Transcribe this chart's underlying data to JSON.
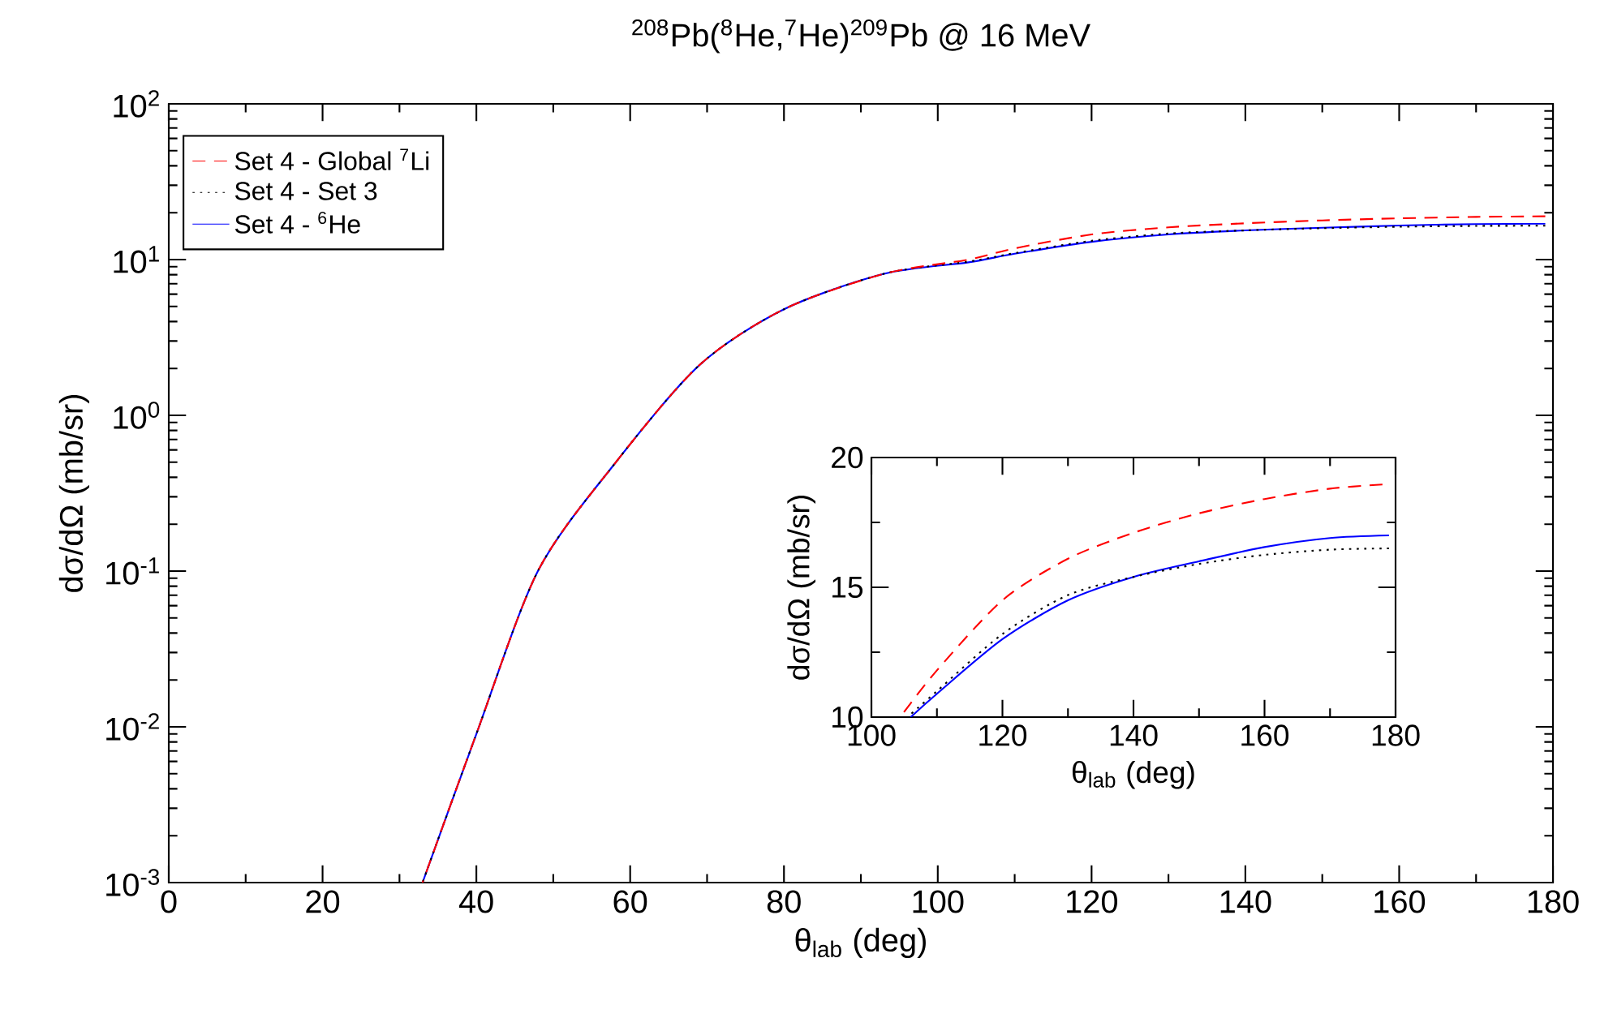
{
  "chart_data": [
    {
      "type": "line",
      "title": "$^{208}$Pb($^{8}$He,$^{7}$He)$^{209}$Pb @ 16 MeV",
      "xlabel": "θ$_{lab}$  (deg)",
      "ylabel": "dσ/dΩ  (mb/sr)",
      "log": "y",
      "legend": "top left",
      "xlim": [
        0,
        180
      ],
      "ylim": [
        0.001,
        100
      ],
      "xticks": [
        0,
        20,
        40,
        60,
        80,
        100,
        120,
        140,
        160,
        180
      ],
      "yticks": [
        {
          "value": 0.001,
          "label": "10$^{-3}$"
        },
        {
          "value": 0.01,
          "label": "10$^{-2}$"
        },
        {
          "value": 0.1,
          "label": "10$^{-1}$"
        },
        {
          "value": 1,
          "label": "10$^{0}$"
        },
        {
          "value": 10,
          "label": "10$^{1}$"
        },
        {
          "value": 100,
          "label": "10$^{2}$"
        }
      ],
      "x": [
        33,
        40,
        48,
        58,
        69,
        80,
        93,
        104,
        110,
        120,
        130,
        140,
        150,
        160,
        170,
        179
      ],
      "series": [
        {
          "name": "Set 4 - Global $^{7}$Li",
          "color": "#ff0000",
          "line_style": "dashed",
          "values": [
            0.001,
            0.009,
            0.1,
            0.49,
            2.1,
            4.8,
            8.1,
            10,
            11.8,
            14.5,
            16.1,
            17.1,
            17.85,
            18.4,
            18.8,
            18.96
          ]
        },
        {
          "name": "Set 4 - Set 3",
          "color": "#000000",
          "line_style": "dotted",
          "values": [
            0.001,
            0.009,
            0.1,
            0.49,
            2.1,
            4.8,
            8.1,
            9.7,
            11.0,
            13.2,
            14.7,
            15.4,
            15.9,
            16.25,
            16.45,
            16.5
          ]
        },
        {
          "name": "Set 4 - $^{6}$He",
          "color": "#0000ff",
          "line_style": "solid",
          "values": [
            0.001,
            0.009,
            0.1,
            0.49,
            2.1,
            4.8,
            8.1,
            9.6,
            10.9,
            13.0,
            14.5,
            15.4,
            16.0,
            16.55,
            16.9,
            17.0
          ]
        }
      ]
    },
    {
      "type": "line",
      "xlabel": "θ$_{lab}$  (deg)",
      "ylabel": "dσ/dΩ  (mb/sr)",
      "xlim": [
        100,
        180
      ],
      "ylim": [
        10,
        20
      ],
      "xticks": [
        100,
        120,
        140,
        160,
        180
      ],
      "yticks": [
        10,
        15,
        20
      ],
      "series": [
        {
          "color": "#ff0000",
          "line_style": "dashed",
          "x": [
            104.4,
            110,
            120,
            130,
            140,
            150,
            160,
            170,
            178
          ],
          "values": [
            10,
            11.8,
            14.5,
            16.1,
            17.1,
            17.85,
            18.4,
            18.8,
            18.96
          ]
        },
        {
          "color": "#000000",
          "line_style": "dotted",
          "x": [
            105.5,
            110,
            120,
            130,
            140,
            150,
            160,
            170,
            179
          ],
          "values": [
            10,
            11.0,
            13.2,
            14.7,
            15.4,
            15.9,
            16.25,
            16.45,
            16.5
          ]
        },
        {
          "color": "#0000ff",
          "line_style": "solid",
          "x": [
            106,
            110,
            120,
            130,
            140,
            150,
            160,
            170,
            179
          ],
          "values": [
            10,
            10.9,
            13.0,
            14.5,
            15.4,
            16.0,
            16.55,
            16.9,
            17.0
          ]
        }
      ]
    }
  ]
}
